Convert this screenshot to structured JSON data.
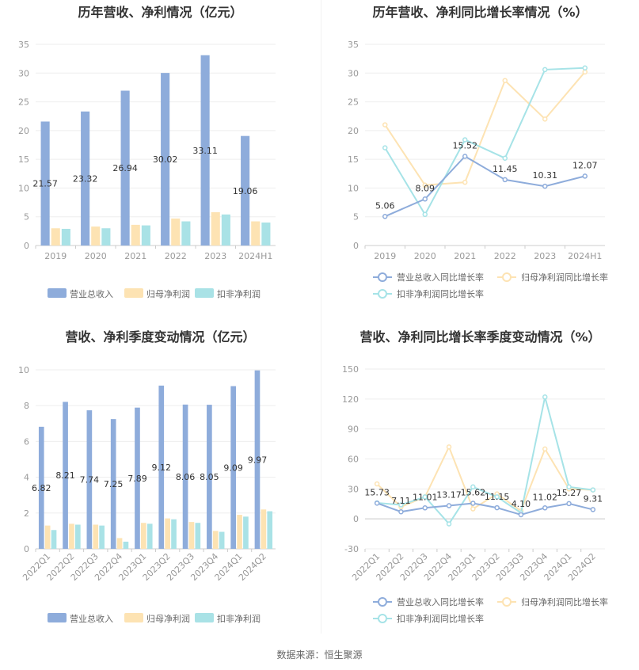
{
  "footer": "数据来源：恒生聚源",
  "colors": {
    "revenue": "#8eacdb",
    "parent_profit": "#fde3b3",
    "deducted_profit": "#a9e2e6",
    "revenue_line": "#8eacdb",
    "parent_line": "#fde3b3",
    "deducted_line": "#a6e3e7",
    "axis_text": "#999999",
    "grid": "#eeeeee",
    "label": "#333333"
  },
  "chart_data": [
    {
      "type": "bar",
      "title": "历年营收、净利情况（亿元）",
      "categories": [
        "2019",
        "2020",
        "2021",
        "2022",
        "2023",
        "2024H1"
      ],
      "ylim": [
        0,
        35
      ],
      "yticks": [
        0,
        5,
        10,
        15,
        20,
        25,
        30,
        35
      ],
      "series": [
        {
          "name": "营业总收入",
          "values": [
            21.57,
            23.32,
            26.94,
            30.02,
            33.11,
            19.06
          ],
          "labels": [
            "21.57",
            "23.32",
            "26.94",
            "30.02",
            "33.11",
            "19.06"
          ]
        },
        {
          "name": "归母净利润",
          "values": [
            3.0,
            3.3,
            3.6,
            4.7,
            5.8,
            4.2
          ]
        },
        {
          "name": "扣非净利润",
          "values": [
            2.9,
            3.0,
            3.5,
            4.2,
            5.4,
            4.0
          ]
        }
      ],
      "legend": "bottom"
    },
    {
      "type": "line",
      "title": "历年营收、净利同比增长率情况（%）",
      "categories": [
        "2019",
        "2020",
        "2021",
        "2022",
        "2023",
        "2024H1"
      ],
      "ylim": [
        0,
        35
      ],
      "yticks": [
        0,
        5,
        10,
        15,
        20,
        25,
        30,
        35
      ],
      "series": [
        {
          "name": "营业总收入同比增长率",
          "values": [
            5.06,
            8.09,
            15.52,
            11.45,
            10.31,
            12.07
          ],
          "labels": [
            "5.06",
            "8.09",
            "15.52",
            "11.45",
            "10.31",
            "12.07"
          ]
        },
        {
          "name": "归母净利润同比增长率",
          "values": [
            21.0,
            10.5,
            11.0,
            28.7,
            22.0,
            30.2
          ]
        },
        {
          "name": "扣非净利润同比增长率",
          "values": [
            17.0,
            5.4,
            18.4,
            15.2,
            30.6,
            30.9
          ]
        }
      ],
      "legend": "bottom"
    },
    {
      "type": "bar",
      "title": "营收、净利季度变动情况（亿元）",
      "categories": [
        "2022Q1",
        "2022Q2",
        "2022Q3",
        "2022Q4",
        "2023Q1",
        "2023Q2",
        "2023Q3",
        "2023Q4",
        "2024Q1",
        "2024Q2"
      ],
      "ylim": [
        0,
        10
      ],
      "yticks": [
        0,
        2,
        4,
        6,
        8,
        10
      ],
      "series": [
        {
          "name": "营业总收入",
          "values": [
            6.82,
            8.21,
            7.74,
            7.25,
            7.89,
            9.12,
            8.06,
            8.05,
            9.09,
            9.97
          ],
          "labels": [
            "6.82",
            "8.21",
            "7.74",
            "7.25",
            "7.89",
            "9.12",
            "8.06",
            "8.05",
            "9.09",
            "9.97"
          ]
        },
        {
          "name": "归母净利润",
          "values": [
            1.3,
            1.4,
            1.35,
            0.6,
            1.45,
            1.7,
            1.5,
            1.0,
            1.9,
            2.2
          ]
        },
        {
          "name": "扣非净利润",
          "values": [
            1.05,
            1.35,
            1.3,
            0.4,
            1.4,
            1.65,
            1.45,
            0.95,
            1.8,
            2.1
          ]
        }
      ],
      "legend": "bottom"
    },
    {
      "type": "line",
      "title": "营收、净利同比增长率季度变动情况（%）",
      "categories": [
        "2022Q1",
        "2022Q2",
        "2022Q3",
        "2022Q4",
        "2023Q1",
        "2023Q2",
        "2023Q3",
        "2023Q4",
        "2024Q1",
        "2024Q2"
      ],
      "ylim": [
        -30,
        150
      ],
      "yticks": [
        -30,
        0,
        30,
        60,
        90,
        120,
        150
      ],
      "series": [
        {
          "name": "营业总收入同比增长率",
          "values": [
            15.73,
            7.11,
            11.01,
            13.17,
            15.62,
            11.15,
            4.1,
            11.02,
            15.27,
            9.31
          ],
          "labels": [
            "15.73",
            "7.11",
            "11.01",
            "13.17",
            "15.62",
            "11.15",
            "4.10",
            "11.02",
            "15.27",
            "9.31"
          ]
        },
        {
          "name": "归母净利润同比增长率",
          "values": [
            35.0,
            12.0,
            22.0,
            72.0,
            10.0,
            25.0,
            8.0,
            70.0,
            30.0,
            29.0
          ]
        },
        {
          "name": "扣非净利润同比增长率",
          "values": [
            16.0,
            14.0,
            22.0,
            -5.0,
            32.0,
            22.0,
            6.0,
            122.0,
            32.0,
            29.0
          ]
        }
      ],
      "legend": "bottom"
    }
  ]
}
